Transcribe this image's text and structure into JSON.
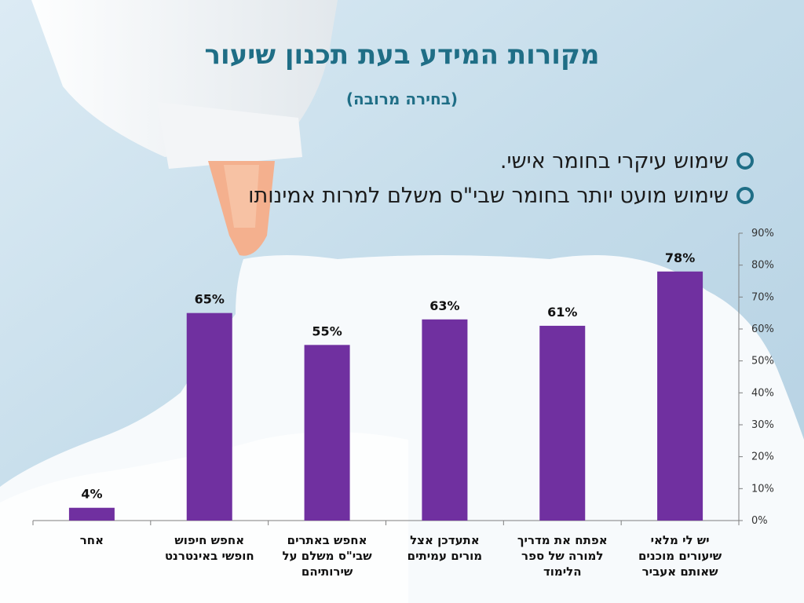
{
  "slide": {
    "title": "מקורות המידע בעת תכנון שיעור",
    "subtitle": "(בחירה מרובה)",
    "bullets": [
      "שימוש עיקרי בחומר אישי.",
      "שימוש מועט יותר בחומר שבי\"ס  משלם למרות  אמינותו"
    ]
  },
  "colors": {
    "bar": "#7030a0",
    "title": "#1f6e86",
    "bullet_marker": "#1f6e86",
    "text": "#1a1a1a",
    "axis": "#7f7f7f"
  },
  "chart_data": {
    "type": "bar",
    "categories": [
      "אחר",
      "אחפש חיפוש חופשי באינטרנט",
      "אחפש באתרים שבי\"ס משלם על שירותיהם",
      "אתעדכן אצל מורים עמיתים",
      "אפתח את מדריך למורה של ספר הלימוד",
      "יש לי מלאי שיעורים מוכנים שאותם אעביר"
    ],
    "category_label_lines": [
      [
        "אחר"
      ],
      [
        "אחפש חיפוש",
        "חופשי באינטרנט"
      ],
      [
        "אחפש באתרים",
        "שבי\"ס משלם על",
        "שירותיהם"
      ],
      [
        "אתעדכן אצל",
        "מורים עמיתים"
      ],
      [
        "אפתח את מדריך",
        "למורה של ספר",
        "הלימוד"
      ],
      [
        "יש לי מלאי",
        "שיעורים מוכנים",
        "שאותם אעביר"
      ]
    ],
    "values": [
      4,
      65,
      55,
      63,
      61,
      78
    ],
    "data_labels": [
      "4%",
      "65%",
      "55%",
      "63%",
      "61%",
      "78%"
    ],
    "y_ticks": [
      "0%",
      "10%",
      "20%",
      "30%",
      "40%",
      "50%",
      "60%",
      "70%",
      "80%",
      "90%"
    ],
    "ylim": [
      0,
      90
    ],
    "y_axis_side": "right",
    "grid": false,
    "legend": "none"
  }
}
